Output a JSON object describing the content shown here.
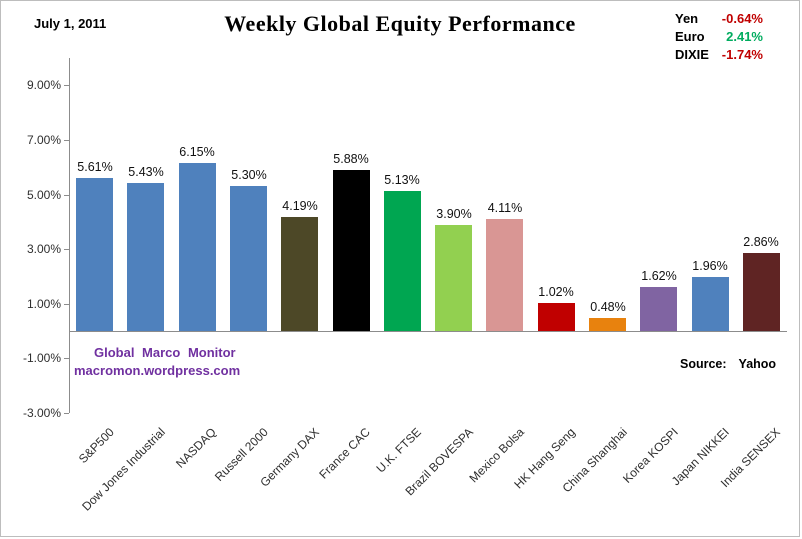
{
  "header": {
    "date": "July 1, 2011",
    "title": "Weekly Global Equity Performance"
  },
  "fx_panel": {
    "rows": [
      {
        "label": "Yen",
        "value": "-0.64%",
        "color": "#c00000"
      },
      {
        "label": "Euro",
        "value": "2.41%",
        "color": "#00ac5f"
      },
      {
        "label": "DIXIE",
        "value": "-1.74%",
        "color": "#c00000"
      }
    ]
  },
  "watermark": {
    "line1": "Global Marco Monitor",
    "line2": "macromon.wordpress.com",
    "color": "#7030a0"
  },
  "source": {
    "label": "Source:",
    "value": "Yahoo"
  },
  "chart_data": {
    "type": "bar",
    "title": "Weekly Global Equity Performance",
    "xlabel": "",
    "ylabel": "",
    "grid": false,
    "legend_position": "none",
    "ylim": [
      -3,
      10
    ],
    "categories": [
      "S&P500",
      "Dow Jones Industrial",
      "NASDAQ",
      "Russell 2000",
      "Germany DAX",
      "France CAC",
      "U.K. FTSE",
      "Brazil BOVESPA",
      "Mexico Bolsa",
      "HK Hang Seng",
      "China Shanghai",
      "Korea KOSPI",
      "Japan NIKKEI",
      "India SENSEX"
    ],
    "values": [
      5.61,
      5.43,
      6.15,
      5.3,
      4.19,
      5.88,
      5.13,
      3.9,
      4.11,
      1.02,
      0.48,
      1.62,
      1.96,
      2.86
    ],
    "labels": [
      "5.61%",
      "5.43%",
      "6.15%",
      "5.30%",
      "4.19%",
      "5.88%",
      "5.13%",
      "3.90%",
      "4.11%",
      "1.02%",
      "0.48%",
      "1.62%",
      "1.96%",
      "2.86%"
    ],
    "bar_colors": [
      "#4f81bd",
      "#4f81bd",
      "#4f81bd",
      "#4f81bd",
      "#4d4827",
      "#000000",
      "#00a651",
      "#92d050",
      "#d99694",
      "#c00000",
      "#e8820e",
      "#8064a2",
      "#4f81bd",
      "#5f2423"
    ],
    "yticks": [
      {
        "value": 9,
        "label": "9.00%"
      },
      {
        "value": 7,
        "label": "7.00%"
      },
      {
        "value": 5,
        "label": "5.00%"
      },
      {
        "value": 3,
        "label": "3.00%"
      },
      {
        "value": 1,
        "label": "1.00%"
      },
      {
        "value": -1,
        "label": "-1.00%"
      },
      {
        "value": -3,
        "label": "-3.00%"
      }
    ]
  }
}
